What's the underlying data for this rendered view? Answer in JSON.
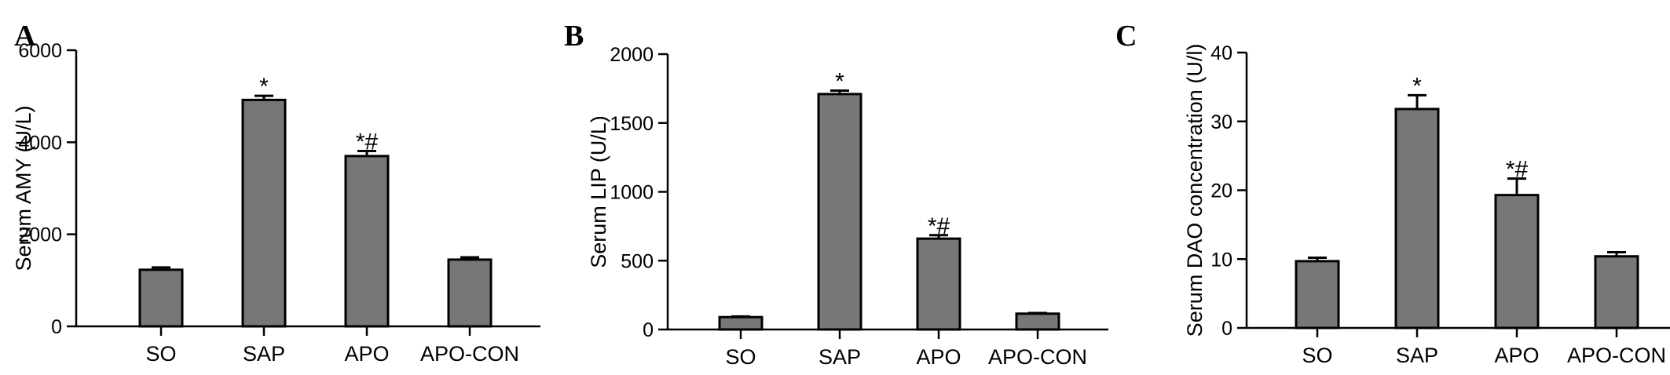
{
  "chart_data": [
    {
      "panel_label": "A",
      "type": "bar",
      "categories": [
        "SO",
        "SAP",
        "APO",
        "APO-CON"
      ],
      "values": [
        1230,
        4920,
        3700,
        1450
      ],
      "errors": [
        50,
        90,
        110,
        50
      ],
      "annotations": [
        "",
        "*",
        "*#",
        ""
      ],
      "ylabel": "Serum AMY (U/L)",
      "ylim": [
        0,
        6000
      ],
      "yticks": [
        0,
        2000,
        4000,
        6000
      ],
      "bar_color": "#777777",
      "grid": false
    },
    {
      "panel_label": "B",
      "type": "bar",
      "categories": [
        "SO",
        "SAP",
        "APO",
        "APO-CON"
      ],
      "values": [
        90,
        1710,
        660,
        115
      ],
      "errors": [
        5,
        25,
        25,
        5
      ],
      "annotations": [
        "",
        "*",
        "*#",
        ""
      ],
      "ylabel": "Serum LIP (U/L)",
      "ylim": [
        0,
        2000
      ],
      "yticks": [
        0,
        500,
        1000,
        1500,
        2000
      ],
      "bar_color": "#777777",
      "grid": false
    },
    {
      "panel_label": "C",
      "type": "bar",
      "categories": [
        "SO",
        "SAP",
        "APO",
        "APO-CON"
      ],
      "values": [
        9.7,
        31.8,
        19.3,
        10.4
      ],
      "errors": [
        0.5,
        2.0,
        2.4,
        0.6
      ],
      "annotations": [
        "",
        "*",
        "*#",
        ""
      ],
      "ylabel": "Serum DAO concentration (U/l)",
      "ylim": [
        0,
        40
      ],
      "yticks": [
        0,
        10,
        20,
        30,
        40
      ],
      "bar_color": "#777777",
      "grid": false
    }
  ]
}
